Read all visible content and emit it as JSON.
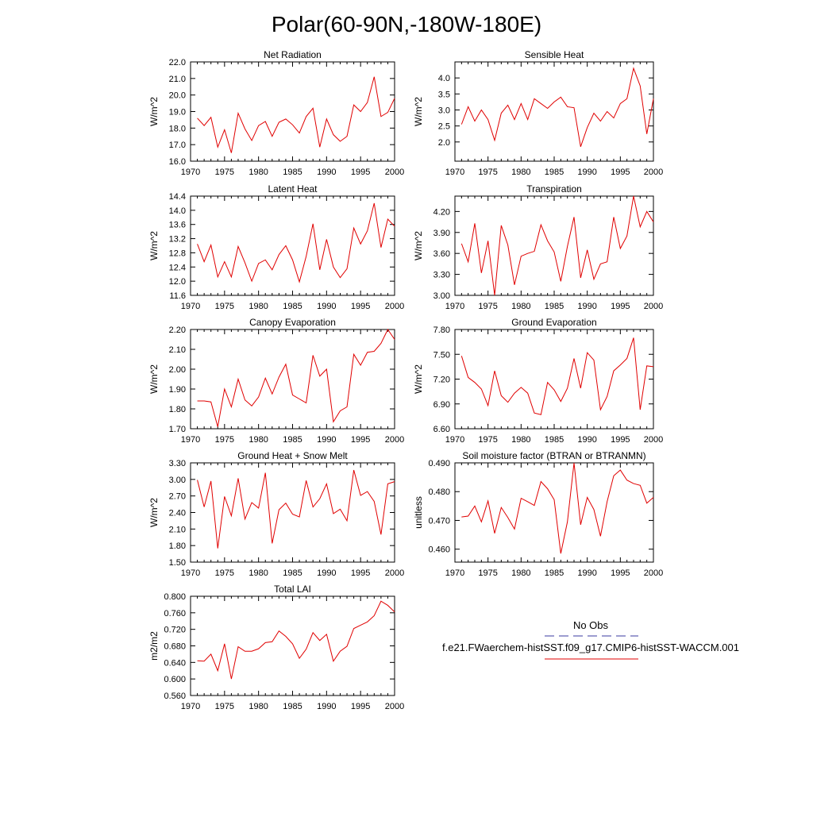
{
  "figure": {
    "title": "Polar(60-90N,-180W-180E)"
  },
  "legend": {
    "obs_label": "No Obs",
    "obs_color": "#3a3aa0",
    "model_label": "f.e21.FWaerchem-histSST.f09_g17.CMIP6-histSST-WACCM.001",
    "model_color": "#e00000"
  },
  "chart_data": [
    {
      "type": "line",
      "title": "Net Radiation",
      "ylabel": "W/m^2",
      "xlim": [
        1970,
        2000
      ],
      "ylim": [
        16.0,
        22.0
      ],
      "xticks": [
        "1970",
        "1975",
        "1980",
        "1985",
        "1990",
        "1995",
        "2000"
      ],
      "yticks": [
        "16.0",
        "17.0",
        "18.0",
        "19.0",
        "20.0",
        "21.0",
        "22.0"
      ],
      "grid": false,
      "x": [
        1971,
        1972,
        1973,
        1974,
        1975,
        1976,
        1977,
        1978,
        1979,
        1980,
        1981,
        1982,
        1983,
        1984,
        1985,
        1986,
        1987,
        1988,
        1989,
        1990,
        1991,
        1992,
        1993,
        1994,
        1995,
        1996,
        1997,
        1998,
        1999,
        2000
      ],
      "series": [
        {
          "values": [
            18.6,
            18.15,
            18.65,
            16.85,
            17.9,
            16.5,
            18.9,
            17.95,
            17.25,
            18.15,
            18.4,
            17.5,
            18.35,
            18.55,
            18.2,
            17.7,
            18.7,
            19.2,
            16.85,
            18.55,
            17.6,
            17.2,
            17.5,
            19.4,
            19.0,
            19.55,
            21.1,
            18.7,
            18.95,
            19.8
          ]
        }
      ]
    },
    {
      "type": "line",
      "title": "Sensible Heat",
      "ylabel": "W/m^2",
      "xlim": [
        1970,
        2000
      ],
      "ylim": [
        1.4,
        4.5
      ],
      "xticks": [
        "1970",
        "1975",
        "1980",
        "1985",
        "1990",
        "1995",
        "2000"
      ],
      "yticks": [
        "2.0",
        "2.5",
        "3.0",
        "3.5",
        "4.0"
      ],
      "grid": false,
      "x": [
        1971,
        1972,
        1973,
        1974,
        1975,
        1976,
        1977,
        1978,
        1979,
        1980,
        1981,
        1982,
        1983,
        1984,
        1985,
        1986,
        1987,
        1988,
        1989,
        1990,
        1991,
        1992,
        1993,
        1994,
        1995,
        1996,
        1997,
        1998,
        1999,
        2000
      ],
      "series": [
        {
          "values": [
            2.55,
            3.1,
            2.65,
            3.0,
            2.7,
            2.05,
            2.9,
            3.15,
            2.7,
            3.2,
            2.7,
            3.35,
            3.2,
            3.05,
            3.25,
            3.4,
            3.1,
            3.07,
            1.85,
            2.45,
            2.9,
            2.65,
            2.95,
            2.75,
            3.2,
            3.35,
            4.3,
            3.75,
            2.25,
            3.35
          ]
        }
      ]
    },
    {
      "type": "line",
      "title": "Latent Heat",
      "ylabel": "W/m^2",
      "xlim": [
        1970,
        2000
      ],
      "ylim": [
        11.6,
        14.4
      ],
      "xticks": [
        "1970",
        "1975",
        "1980",
        "1985",
        "1990",
        "1995",
        "2000"
      ],
      "yticks": [
        "11.6",
        "12.0",
        "12.4",
        "12.8",
        "13.2",
        "13.6",
        "14.0",
        "14.4"
      ],
      "grid": false,
      "x": [
        1971,
        1972,
        1973,
        1974,
        1975,
        1976,
        1977,
        1978,
        1979,
        1980,
        1981,
        1982,
        1983,
        1984,
        1985,
        1986,
        1987,
        1988,
        1989,
        1990,
        1991,
        1992,
        1993,
        1994,
        1995,
        1996,
        1997,
        1998,
        1999,
        2000
      ],
      "series": [
        {
          "values": [
            13.05,
            12.55,
            13.02,
            12.12,
            12.55,
            12.12,
            12.98,
            12.52,
            12.0,
            12.5,
            12.6,
            12.32,
            12.75,
            13.0,
            12.6,
            11.98,
            12.7,
            13.62,
            12.32,
            13.18,
            12.4,
            12.1,
            12.35,
            13.5,
            13.05,
            13.42,
            14.2,
            12.95,
            13.75,
            13.55
          ]
        }
      ]
    },
    {
      "type": "line",
      "title": "Transpiration",
      "ylabel": "W/m^2",
      "xlim": [
        1970,
        2000
      ],
      "ylim": [
        3.0,
        4.42
      ],
      "xticks": [
        "1970",
        "1975",
        "1980",
        "1985",
        "1990",
        "1995",
        "2000"
      ],
      "yticks": [
        "3.00",
        "3.30",
        "3.60",
        "3.90",
        "4.20"
      ],
      "grid": false,
      "x": [
        1971,
        1972,
        1973,
        1974,
        1975,
        1976,
        1977,
        1978,
        1979,
        1980,
        1981,
        1982,
        1983,
        1984,
        1985,
        1986,
        1987,
        1988,
        1989,
        1990,
        1991,
        1992,
        1993,
        1994,
        1995,
        1996,
        1997,
        1998,
        1999,
        2000
      ],
      "series": [
        {
          "values": [
            3.74,
            3.48,
            4.03,
            3.32,
            3.78,
            3.0,
            4.0,
            3.72,
            3.15,
            3.56,
            3.6,
            3.63,
            4.01,
            3.78,
            3.62,
            3.2,
            3.7,
            4.12,
            3.25,
            3.65,
            3.23,
            3.45,
            3.48,
            4.12,
            3.67,
            3.85,
            4.42,
            3.98,
            4.2,
            4.05
          ]
        }
      ]
    },
    {
      "type": "line",
      "title": "Canopy Evaporation",
      "ylabel": "W/m^2",
      "xlim": [
        1970,
        2000
      ],
      "ylim": [
        1.7,
        2.2
      ],
      "xticks": [
        "1970",
        "1975",
        "1980",
        "1985",
        "1990",
        "1995",
        "2000"
      ],
      "yticks": [
        "1.70",
        "1.80",
        "1.90",
        "2.00",
        "2.10",
        "2.20"
      ],
      "grid": false,
      "x": [
        1971,
        1972,
        1973,
        1974,
        1975,
        1976,
        1977,
        1978,
        1979,
        1980,
        1981,
        1982,
        1983,
        1984,
        1985,
        1986,
        1987,
        1988,
        1989,
        1990,
        1991,
        1992,
        1993,
        1994,
        1995,
        1996,
        1997,
        1998,
        1999,
        2000
      ],
      "series": [
        {
          "values": [
            1.84,
            1.84,
            1.835,
            1.71,
            1.9,
            1.81,
            1.95,
            1.845,
            1.815,
            1.86,
            1.955,
            1.875,
            1.96,
            2.025,
            1.87,
            1.85,
            1.83,
            2.07,
            1.965,
            2.0,
            1.735,
            1.79,
            1.81,
            2.075,
            2.02,
            2.085,
            2.09,
            2.13,
            2.2,
            2.15
          ]
        }
      ]
    },
    {
      "type": "line",
      "title": "Ground Evaporation",
      "ylabel": "W/m^2",
      "xlim": [
        1970,
        2000
      ],
      "ylim": [
        6.6,
        7.8
      ],
      "xticks": [
        "1970",
        "1975",
        "1980",
        "1985",
        "1990",
        "1995",
        "2000"
      ],
      "yticks": [
        "6.60",
        "6.90",
        "7.20",
        "7.50",
        "7.80"
      ],
      "grid": false,
      "x": [
        1971,
        1972,
        1973,
        1974,
        1975,
        1976,
        1977,
        1978,
        1979,
        1980,
        1981,
        1982,
        1983,
        1984,
        1985,
        1986,
        1987,
        1988,
        1989,
        1990,
        1991,
        1992,
        1993,
        1994,
        1995,
        1996,
        1997,
        1998,
        1999,
        2000
      ],
      "series": [
        {
          "values": [
            7.48,
            7.22,
            7.16,
            7.08,
            6.88,
            7.3,
            7.0,
            6.92,
            7.03,
            7.1,
            7.03,
            6.79,
            6.77,
            7.16,
            7.07,
            6.93,
            7.09,
            7.45,
            7.09,
            7.52,
            7.43,
            6.83,
            6.99,
            7.3,
            7.37,
            7.45,
            7.7,
            6.83,
            7.36,
            7.35
          ]
        }
      ]
    },
    {
      "type": "line",
      "title": "Ground Heat + Snow Melt",
      "ylabel": "W/m^2",
      "xlim": [
        1970,
        2000
      ],
      "ylim": [
        1.5,
        3.3
      ],
      "xticks": [
        "1970",
        "1975",
        "1980",
        "1985",
        "1990",
        "1995",
        "2000"
      ],
      "yticks": [
        "1.50",
        "1.80",
        "2.10",
        "2.40",
        "2.70",
        "3.00",
        "3.30"
      ],
      "grid": false,
      "x": [
        1971,
        1972,
        1973,
        1974,
        1975,
        1976,
        1977,
        1978,
        1979,
        1980,
        1981,
        1982,
        1983,
        1984,
        1985,
        1986,
        1987,
        1988,
        1989,
        1990,
        1991,
        1992,
        1993,
        1994,
        1995,
        1996,
        1997,
        1998,
        1999,
        2000
      ],
      "series": [
        {
          "values": [
            2.99,
            2.5,
            2.97,
            1.75,
            2.69,
            2.34,
            3.02,
            2.28,
            2.58,
            2.48,
            3.12,
            1.84,
            2.45,
            2.57,
            2.37,
            2.32,
            2.98,
            2.5,
            2.65,
            2.92,
            2.38,
            2.46,
            2.25,
            3.17,
            2.71,
            2.78,
            2.6,
            2.0,
            2.92,
            2.96
          ]
        }
      ]
    },
    {
      "type": "line",
      "title": "Soil moisture factor (BTRAN or BTRANMN)",
      "ylabel": "unitless",
      "xlim": [
        1970,
        2000
      ],
      "ylim": [
        0.4555,
        0.49
      ],
      "xticks": [
        "1970",
        "1975",
        "1980",
        "1985",
        "1990",
        "1995",
        "2000"
      ],
      "yticks": [
        "0.460",
        "0.470",
        "0.480",
        "0.490"
      ],
      "grid": false,
      "x": [
        1971,
        1972,
        1973,
        1974,
        1975,
        1976,
        1977,
        1978,
        1979,
        1980,
        1981,
        1982,
        1983,
        1984,
        1985,
        1986,
        1987,
        1988,
        1989,
        1990,
        1991,
        1992,
        1993,
        1994,
        1995,
        1996,
        1997,
        1998,
        1999,
        2000
      ],
      "series": [
        {
          "values": [
            0.4712,
            0.4715,
            0.475,
            0.4695,
            0.4768,
            0.4655,
            0.4745,
            0.471,
            0.467,
            0.4777,
            0.4765,
            0.4752,
            0.4835,
            0.481,
            0.4772,
            0.4585,
            0.4695,
            0.49,
            0.4685,
            0.478,
            0.4738,
            0.4645,
            0.4765,
            0.4855,
            0.4875,
            0.484,
            0.4828,
            0.4822,
            0.476,
            0.478
          ]
        }
      ]
    },
    {
      "type": "line",
      "title": "Total LAI",
      "ylabel": "m2/m2",
      "xlim": [
        1970,
        2000
      ],
      "ylim": [
        0.56,
        0.8
      ],
      "xticks": [
        "1970",
        "1975",
        "1980",
        "1985",
        "1990",
        "1995",
        "2000"
      ],
      "yticks": [
        "0.560",
        "0.600",
        "0.640",
        "0.680",
        "0.720",
        "0.760",
        "0.800"
      ],
      "grid": false,
      "x": [
        1971,
        1972,
        1973,
        1974,
        1975,
        1976,
        1977,
        1978,
        1979,
        1980,
        1981,
        1982,
        1983,
        1984,
        1985,
        1986,
        1987,
        1988,
        1989,
        1990,
        1991,
        1992,
        1993,
        1994,
        1995,
        1996,
        1997,
        1998,
        1999,
        2000
      ],
      "series": [
        {
          "values": [
            0.644,
            0.643,
            0.66,
            0.62,
            0.685,
            0.6,
            0.678,
            0.667,
            0.667,
            0.673,
            0.688,
            0.69,
            0.716,
            0.703,
            0.685,
            0.65,
            0.672,
            0.712,
            0.693,
            0.708,
            0.643,
            0.667,
            0.679,
            0.722,
            0.73,
            0.738,
            0.753,
            0.788,
            0.778,
            0.762
          ]
        }
      ]
    }
  ]
}
